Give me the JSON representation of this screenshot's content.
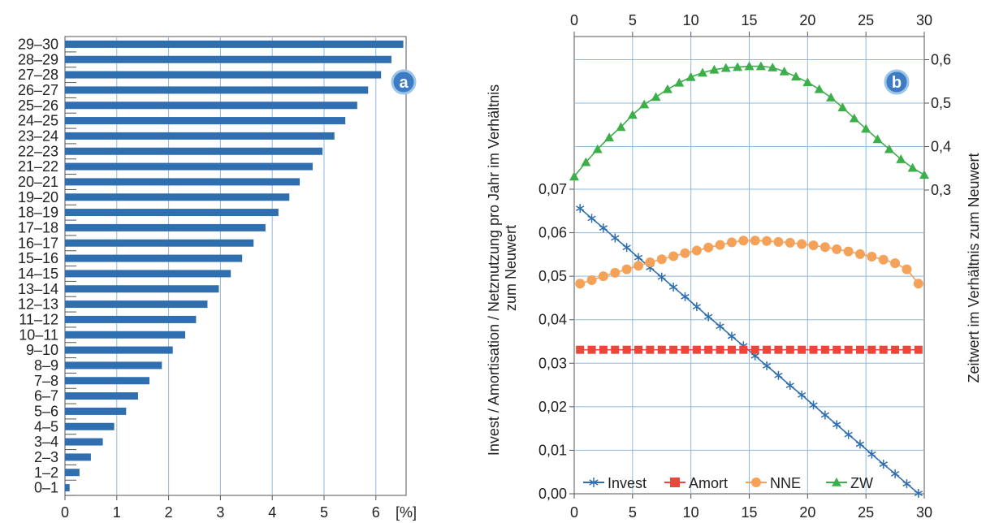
{
  "chart_data": [
    {
      "type": "bar",
      "orientation": "horizontal",
      "badge": "a",
      "categories": [
        "0–1",
        "1–2",
        "2–3",
        "3–4",
        "4–5",
        "5–6",
        "6–7",
        "7–8",
        "8–9",
        "9–10",
        "10–11",
        "11–12",
        "12–13",
        "13–14",
        "14–15",
        "15–16",
        "16–17",
        "17–18",
        "18–19",
        "19–20",
        "20–21",
        "21–22",
        "22–23",
        "23–24",
        "24–25",
        "25–26",
        "26–27",
        "27–28",
        "28–29",
        "29–30"
      ],
      "values": [
        0.09,
        0.28,
        0.5,
        0.73,
        0.95,
        1.18,
        1.41,
        1.63,
        1.87,
        2.08,
        2.32,
        2.53,
        2.75,
        2.97,
        3.2,
        3.42,
        3.64,
        3.87,
        4.12,
        4.33,
        4.53,
        4.78,
        4.97,
        5.2,
        5.41,
        5.64,
        5.85,
        6.1,
        6.3,
        6.53
      ],
      "xunit": "[%]",
      "xticks": [
        "0",
        "1",
        "2",
        "3",
        "4",
        "5",
        "6"
      ],
      "xlim": [
        0,
        7
      ],
      "grid": true,
      "colors": {
        "bar": "#2f6fb0",
        "grid": "#8fb8d8"
      }
    },
    {
      "type": "line",
      "badge": "b",
      "x_ticks": [
        "0",
        "5",
        "10",
        "15",
        "20",
        "25",
        "30"
      ],
      "xlim": [
        0,
        30
      ],
      "ylabel": "Invest / Amortisation / Netznutzung pro Jahr im Verhältnis zum Neuwert",
      "y_ticks": [
        "0,00",
        "0,01",
        "0,02",
        "0,03",
        "0,04",
        "0,05",
        "0,06",
        "0,07"
      ],
      "ylim": [
        0,
        0.07
      ],
      "y2label": "Zeitwert im Verhältnis zum Neuwert",
      "y2_ticks": [
        "0,3",
        "0,4",
        "0,5",
        "0,6"
      ],
      "y2lim": [
        0.3,
        0.6
      ],
      "legend_position": "bottom-left",
      "series": [
        {
          "name": "Invest",
          "axis": "left",
          "marker": "star",
          "color": "#2f6fb0",
          "x": [
            0.5,
            1.5,
            2.5,
            3.5,
            4.5,
            5.5,
            6.5,
            7.5,
            8.5,
            9.5,
            10.5,
            11.5,
            12.5,
            13.5,
            14.5,
            15.5,
            16.5,
            17.5,
            18.5,
            19.5,
            20.5,
            21.5,
            22.5,
            23.5,
            24.5,
            25.5,
            26.5,
            27.5,
            28.5,
            29.5
          ],
          "y": [
            0.0656,
            0.0633,
            0.0611,
            0.0588,
            0.0566,
            0.0543,
            0.052,
            0.0498,
            0.0475,
            0.0453,
            0.043,
            0.0407,
            0.0385,
            0.0362,
            0.034,
            0.0317,
            0.0294,
            0.0272,
            0.0249,
            0.0227,
            0.0204,
            0.0181,
            0.0159,
            0.0136,
            0.0114,
            0.0091,
            0.0068,
            0.0046,
            0.0023,
            0.0001
          ]
        },
        {
          "name": "Amort",
          "axis": "left",
          "marker": "square",
          "color": "#e8473a",
          "x": [
            0.5,
            1.5,
            2.5,
            3.5,
            4.5,
            5.5,
            6.5,
            7.5,
            8.5,
            9.5,
            10.5,
            11.5,
            12.5,
            13.5,
            14.5,
            15.5,
            16.5,
            17.5,
            18.5,
            19.5,
            20.5,
            21.5,
            22.5,
            23.5,
            24.5,
            25.5,
            26.5,
            27.5,
            28.5,
            29.5
          ],
          "y": [
            0.0331,
            0.0331,
            0.0331,
            0.0331,
            0.0331,
            0.0331,
            0.0331,
            0.0331,
            0.0331,
            0.0331,
            0.0331,
            0.0331,
            0.0331,
            0.0331,
            0.0331,
            0.0331,
            0.0331,
            0.0331,
            0.0331,
            0.0331,
            0.0331,
            0.0331,
            0.0331,
            0.0331,
            0.0331,
            0.0331,
            0.0331,
            0.0331,
            0.0331,
            0.0331
          ]
        },
        {
          "name": "NNE",
          "axis": "left",
          "marker": "circle",
          "color": "#f4a25a",
          "x": [
            0.5,
            1.5,
            2.5,
            3.5,
            4.5,
            5.5,
            6.5,
            7.5,
            8.5,
            9.5,
            10.5,
            11.5,
            12.5,
            13.5,
            14.5,
            15.5,
            16.5,
            17.5,
            18.5,
            19.5,
            20.5,
            21.5,
            22.5,
            23.5,
            24.5,
            25.5,
            26.5,
            27.5,
            28.5,
            29.5
          ],
          "y": [
            0.0483,
            0.0491,
            0.05,
            0.0508,
            0.0516,
            0.0524,
            0.0532,
            0.0539,
            0.0546,
            0.0553,
            0.0559,
            0.0566,
            0.0572,
            0.0578,
            0.0582,
            0.0582,
            0.0581,
            0.0579,
            0.0577,
            0.0574,
            0.0571,
            0.0567,
            0.0562,
            0.0557,
            0.0551,
            0.0545,
            0.0538,
            0.053,
            0.0516,
            0.0483
          ]
        },
        {
          "name": "ZW",
          "axis": "right",
          "marker": "triangle",
          "color": "#3daf4a",
          "x": [
            0,
            1,
            2,
            3,
            4,
            5,
            6,
            7,
            8,
            9,
            10,
            11,
            12,
            13,
            14,
            15,
            16,
            17,
            18,
            19,
            20,
            21,
            22,
            23,
            24,
            25,
            26,
            27,
            28,
            29,
            30
          ],
          "y": [
            0.331,
            0.364,
            0.394,
            0.421,
            0.445,
            0.473,
            0.497,
            0.514,
            0.532,
            0.547,
            0.56,
            0.57,
            0.577,
            0.581,
            0.583,
            0.585,
            0.585,
            0.582,
            0.573,
            0.561,
            0.548,
            0.532,
            0.513,
            0.49,
            0.465,
            0.441,
            0.417,
            0.394,
            0.371,
            0.351,
            0.335
          ]
        }
      ]
    }
  ]
}
